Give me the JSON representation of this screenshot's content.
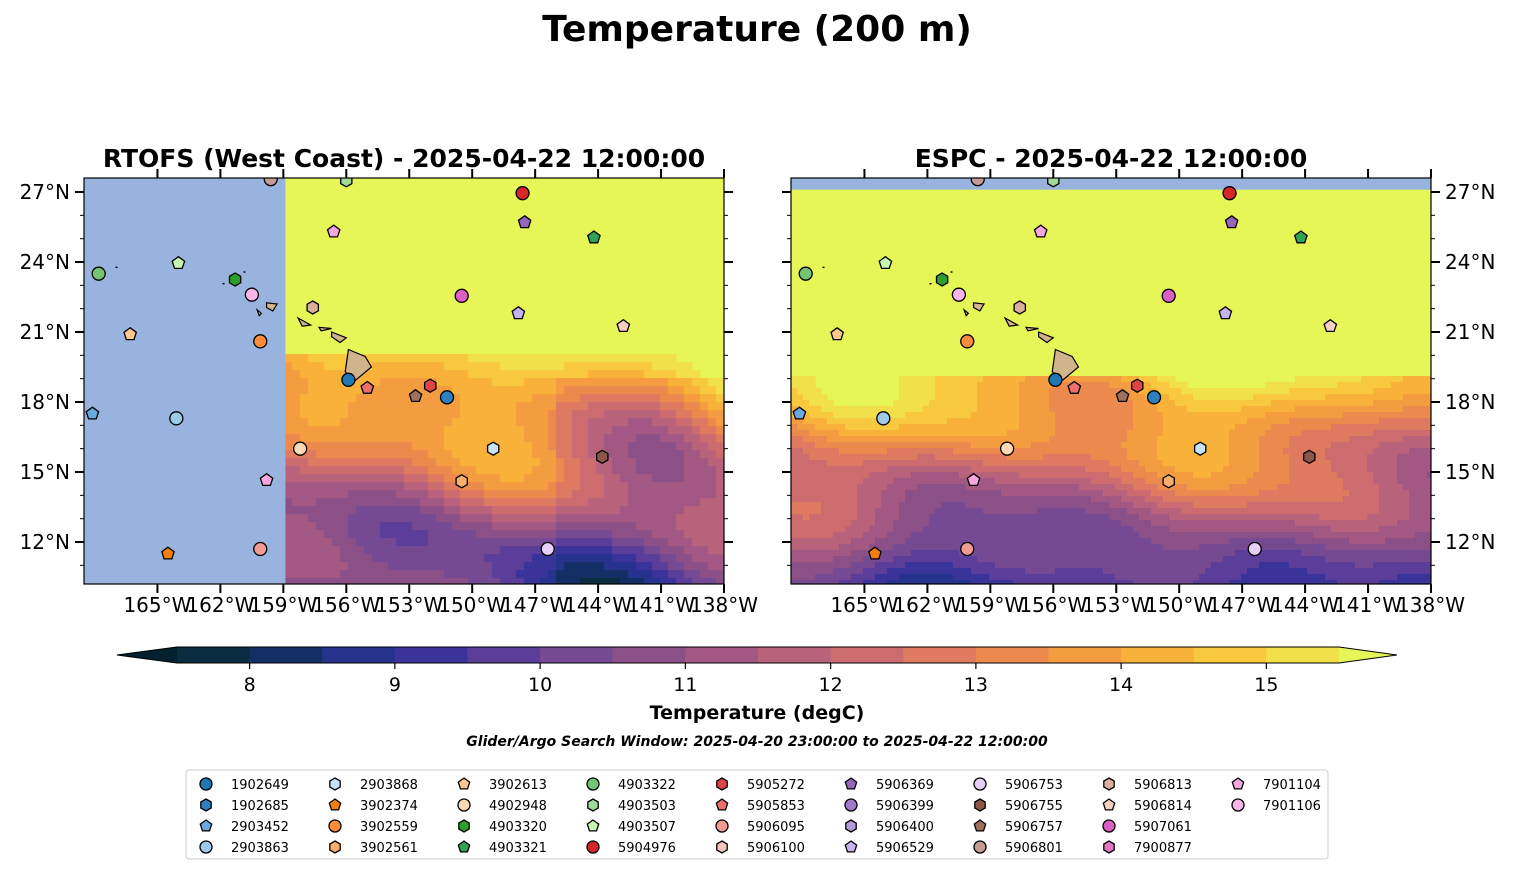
{
  "figure": {
    "suptitle": "Temperature (200 m)",
    "search_window": "Glider/Argo Search Window: 2025-04-20 23:00:00 to 2025-04-22 12:00:00"
  },
  "chart_data": [
    {
      "type": "heatmap",
      "title": "RTOFS (West Coast) - 2025-04-22 12:00:00",
      "xlim": [
        -168.5,
        -138
      ],
      "ylim": [
        10.2,
        27.6
      ],
      "xticks": [
        -165,
        -162,
        -159,
        -156,
        -153,
        -150,
        -147,
        -144,
        -141,
        -138
      ],
      "xtick_labels": [
        "165°W",
        "162°W",
        "159°W",
        "156°W",
        "153°W",
        "150°W",
        "147°W",
        "144°W",
        "141°W",
        "138°W"
      ],
      "yticks": [
        12,
        15,
        18,
        21,
        24,
        27
      ],
      "ytick_labels": [
        "12°N",
        "15°N",
        "18°N",
        "21°N",
        "24°N",
        "27°N"
      ],
      "ytick_side": "left",
      "no_data_region": {
        "lon_min": -168.5,
        "lon_max": -158.9,
        "color": "#98b4de"
      }
    },
    {
      "type": "heatmap",
      "title": "ESPC - 2025-04-22 12:00:00",
      "xlim": [
        -168.5,
        -138
      ],
      "ylim": [
        10.2,
        27.6
      ],
      "xticks": [
        -165,
        -162,
        -159,
        -156,
        -153,
        -150,
        -147,
        -144,
        -141,
        -138
      ],
      "xtick_labels": [
        "165°W",
        "162°W",
        "159°W",
        "156°W",
        "153°W",
        "150°W",
        "147°W",
        "144°W",
        "141°W",
        "138°W"
      ],
      "yticks": [
        12,
        15,
        18,
        21,
        24,
        27
      ],
      "ytick_labels": [
        "12°N",
        "15°N",
        "18°N",
        "21°N",
        "24°N",
        "27°N"
      ],
      "ytick_side": "right",
      "no_data_region": {
        "lat_min": 27.1,
        "lat_max": 27.6,
        "color": "#98b4de"
      }
    }
  ],
  "colorbar": {
    "label": "Temperature (degC)",
    "min": 7.5,
    "max": 15.5,
    "step": 0.5,
    "extend": "both",
    "ticks": [
      8,
      9,
      10,
      11,
      12,
      13,
      14,
      15
    ],
    "tick_labels": [
      "8",
      "9",
      "10",
      "11",
      "12",
      "13",
      "14",
      "15"
    ],
    "under_color": "#04222e",
    "over_color": "#e6f657",
    "colors": [
      "#0a2c40",
      "#142e66",
      "#25338c",
      "#3a349a",
      "#5a3e9a",
      "#754a92",
      "#8c5088",
      "#a35883",
      "#b8627c",
      "#cc6c6f",
      "#de7a5f",
      "#ec8a4e",
      "#f49d40",
      "#f8b23a",
      "#f8c83e",
      "#f2e04a"
    ]
  },
  "legend": {
    "columns": 9,
    "entries": [
      {
        "id": "1902649",
        "marker": "circle",
        "color": "#1f77b4",
        "lon": -155.9,
        "lat": 18.95
      },
      {
        "id": "1902685",
        "marker": "hexagon",
        "color": "#2f7fc0",
        "lon": null,
        "lat": null
      },
      {
        "id": "2903452",
        "marker": "pentagon",
        "color": "#6aa8e0",
        "lon": -168.1,
        "lat": 17.5
      },
      {
        "id": "2903863",
        "marker": "circle",
        "color": "#9ecae9",
        "lon": -164.1,
        "lat": 17.3
      },
      {
        "id": "2903868",
        "marker": "hexagon",
        "color": "#c8e3f8",
        "lon": -149.0,
        "lat": 16.0
      },
      {
        "id": "3902374",
        "marker": "pentagon",
        "color": "#f57f0e",
        "lon": -164.5,
        "lat": 11.5
      },
      {
        "id": "3902559",
        "marker": "circle",
        "color": "#fd8d3c",
        "lon": -160.1,
        "lat": 20.6
      },
      {
        "id": "3902561",
        "marker": "hexagon",
        "color": "#fdae6b",
        "lon": -150.5,
        "lat": 14.6
      },
      {
        "id": "3902613",
        "marker": "pentagon",
        "color": "#fdc78f",
        "lon": -166.3,
        "lat": 20.9
      },
      {
        "id": "4902948",
        "marker": "circle",
        "color": "#fdd9b5",
        "lon": -158.2,
        "lat": 16.0
      },
      {
        "id": "4903320",
        "marker": "hexagon",
        "color": "#2ca02c",
        "lon": -161.3,
        "lat": 23.25
      },
      {
        "id": "4903321",
        "marker": "pentagon",
        "color": "#31a354",
        "lon": -144.2,
        "lat": 25.05
      },
      {
        "id": "4903322",
        "marker": "circle",
        "color": "#74c476",
        "lon": -167.8,
        "lat": 23.5
      },
      {
        "id": "4903503",
        "marker": "hexagon",
        "color": "#a1d99b",
        "lon": -156.0,
        "lat": 27.5
      },
      {
        "id": "4903507",
        "marker": "pentagon",
        "color": "#c7f5b4",
        "lon": -164.0,
        "lat": 23.95
      },
      {
        "id": "5904976",
        "marker": "circle",
        "color": "#d62728",
        "lon": -147.6,
        "lat": 26.95
      },
      {
        "id": "5905272",
        "marker": "hexagon",
        "color": "#e04545",
        "lon": -152.0,
        "lat": 18.7
      },
      {
        "id": "5905853",
        "marker": "pentagon",
        "color": "#ee6e6e",
        "lon": -155.0,
        "lat": 18.6
      },
      {
        "id": "5906095",
        "marker": "circle",
        "color": "#f29b92",
        "lon": -160.1,
        "lat": 11.7
      },
      {
        "id": "5906100",
        "marker": "hexagon",
        "color": "#f8c4bb",
        "lon": null,
        "lat": null
      },
      {
        "id": "5906369",
        "marker": "pentagon",
        "color": "#9467bd",
        "lon": -147.5,
        "lat": 25.7
      },
      {
        "id": "5906399",
        "marker": "circle",
        "color": "#9e7ac9",
        "lon": null,
        "lat": null
      },
      {
        "id": "5906400",
        "marker": "hexagon",
        "color": "#b39ddb",
        "lon": null,
        "lat": null
      },
      {
        "id": "5906529",
        "marker": "pentagon",
        "color": "#c6b3f2",
        "lon": -147.8,
        "lat": 21.8
      },
      {
        "id": "5906753",
        "marker": "circle",
        "color": "#e6d0f7",
        "lon": -146.4,
        "lat": 11.7
      },
      {
        "id": "5906755",
        "marker": "hexagon",
        "color": "#8c564b",
        "lon": -143.8,
        "lat": 15.65
      },
      {
        "id": "5906757",
        "marker": "pentagon",
        "color": "#a0705f",
        "lon": -152.7,
        "lat": 18.25
      },
      {
        "id": "5906801",
        "marker": "circle",
        "color": "#c49c94",
        "lon": -159.6,
        "lat": 27.55
      },
      {
        "id": "5906813",
        "marker": "hexagon",
        "color": "#dbb09a",
        "lon": -157.6,
        "lat": 22.05
      },
      {
        "id": "5906814",
        "marker": "pentagon",
        "color": "#f5d0c0",
        "lon": -142.8,
        "lat": 21.25
      },
      {
        "id": "5907061",
        "marker": "circle",
        "color": "#de5fc3",
        "lon": -150.5,
        "lat": 22.55
      },
      {
        "id": "7900877",
        "marker": "hexagon",
        "color": "#e377c2",
        "lon": null,
        "lat": null
      },
      {
        "id": "7901104",
        "marker": "pentagon",
        "color": "#f7a6e0",
        "lon": -159.8,
        "lat": 14.65
      },
      {
        "id": "7901106",
        "marker": "circle",
        "color": "#f9b6e8",
        "lon": -160.5,
        "lat": 22.6
      }
    ],
    "extra_points": [
      {
        "marker": "circle",
        "color": "#2f7fc0",
        "lon": -151.2,
        "lat": 18.2
      },
      {
        "marker": "pentagon",
        "color": "#f7a6e0",
        "lon": -156.6,
        "lat": 25.3
      }
    ]
  }
}
